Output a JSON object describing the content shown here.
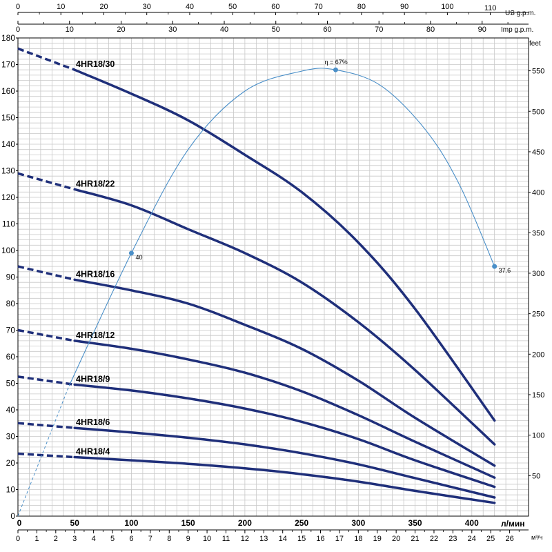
{
  "chart_data": {
    "type": "line",
    "axes": {
      "left": {
        "min": 0,
        "max": 180,
        "tick_labels": [
          "0",
          "10",
          "20",
          "30",
          "40",
          "50",
          "60",
          "70",
          "80",
          "90",
          "100",
          "110",
          "120",
          "130",
          "140",
          "150",
          "160",
          "170",
          "180"
        ]
      },
      "right": {
        "label": "feet",
        "min": 0,
        "max": 590.55,
        "tick_values": [
          50,
          100,
          150,
          200,
          250,
          300,
          350,
          400,
          450,
          500,
          550
        ],
        "tick_labels": [
          "50",
          "100",
          "150",
          "200",
          "250",
          "300",
          "350",
          "400",
          "450",
          "500",
          "550"
        ]
      },
      "bottom_lpm": {
        "label": "л/мин",
        "min": 0,
        "max": 450,
        "tick_values": [
          50,
          100,
          150,
          200,
          250,
          300,
          350,
          400
        ],
        "tick_labels": [
          "50",
          "100",
          "150",
          "200",
          "250",
          "300",
          "350",
          "400"
        ],
        "origin_label": "0"
      },
      "bottom_m3h": {
        "label": "м³/ч",
        "min": 0,
        "max": 27,
        "tick_values": [
          0,
          1,
          2,
          3,
          4,
          5,
          6,
          7,
          8,
          9,
          10,
          11,
          12,
          13,
          14,
          15,
          16,
          17,
          18,
          19,
          20,
          21,
          22,
          23,
          24,
          25,
          26
        ],
        "tick_labels": [
          "0",
          "1",
          "2",
          "3",
          "4",
          "5",
          "6",
          "7",
          "8",
          "9",
          "10",
          "11",
          "12",
          "13",
          "14",
          "15",
          "16",
          "17",
          "18",
          "19",
          "20",
          "21",
          "22",
          "23",
          "24",
          "25",
          "26"
        ]
      },
      "top_us": {
        "label": "US g.p.m.",
        "min": 0,
        "max": 118.9,
        "tick_values": [
          0,
          10,
          20,
          30,
          40,
          50,
          60,
          70,
          80,
          90,
          100,
          110
        ],
        "tick_labels": [
          "0",
          "10",
          "20",
          "30",
          "40",
          "50",
          "60",
          "70",
          "80",
          "90",
          "100",
          "110"
        ]
      },
      "top_imp": {
        "label": "Imp g.p.m.",
        "min": 0,
        "max": 99,
        "tick_values": [
          0,
          10,
          20,
          30,
          40,
          50,
          60,
          70,
          80,
          90
        ],
        "tick_labels": [
          "0",
          "10",
          "20",
          "30",
          "40",
          "50",
          "60",
          "70",
          "80",
          "90"
        ]
      }
    },
    "grid": true,
    "series": [
      {
        "name": "4HR18/30",
        "color": "#1f2f7a",
        "dashed": {
          "x": [
            0,
            50
          ],
          "y": [
            176,
            168
          ]
        },
        "x": [
          50,
          100,
          150,
          200,
          250,
          300,
          350,
          420
        ],
        "y": [
          168,
          159,
          149,
          136,
          122,
          103,
          78,
          36
        ]
      },
      {
        "name": "4HR18/22",
        "color": "#1f2f7a",
        "dashed": {
          "x": [
            0,
            50
          ],
          "y": [
            129,
            123
          ]
        },
        "x": [
          50,
          100,
          150,
          200,
          250,
          300,
          350,
          420
        ],
        "y": [
          123,
          117,
          108,
          99,
          88,
          73,
          55,
          27
        ]
      },
      {
        "name": "4HR18/16",
        "color": "#1f2f7a",
        "dashed": {
          "x": [
            0,
            50
          ],
          "y": [
            94,
            89
          ]
        },
        "x": [
          50,
          100,
          150,
          200,
          250,
          300,
          350,
          420
        ],
        "y": [
          89,
          85,
          80,
          72,
          63,
          51,
          37,
          19
        ]
      },
      {
        "name": "4HR18/12",
        "color": "#1f2f7a",
        "dashed": {
          "x": [
            0,
            50
          ],
          "y": [
            70,
            66
          ]
        },
        "x": [
          50,
          100,
          150,
          200,
          250,
          300,
          350,
          420
        ],
        "y": [
          66,
          63,
          59,
          54,
          47,
          38,
          28,
          14.5
        ]
      },
      {
        "name": "4HR18/9",
        "color": "#1f2f7a",
        "dashed": {
          "x": [
            0,
            50
          ],
          "y": [
            52.5,
            49.5
          ]
        },
        "x": [
          50,
          100,
          150,
          200,
          250,
          300,
          350,
          420
        ],
        "y": [
          49.5,
          47.3,
          44.3,
          40.5,
          35.5,
          29,
          21,
          11
        ]
      },
      {
        "name": "4HR18/6",
        "color": "#1f2f7a",
        "dashed": {
          "x": [
            0,
            50
          ],
          "y": [
            35,
            33.2
          ]
        },
        "x": [
          50,
          100,
          150,
          200,
          250,
          300,
          350,
          420
        ],
        "y": [
          33.2,
          31.5,
          29.5,
          27,
          23.7,
          19.5,
          14.3,
          7
        ]
      },
      {
        "name": "4HR18/4",
        "color": "#1f2f7a",
        "dashed": {
          "x": [
            0,
            50
          ],
          "y": [
            23.5,
            22.2
          ]
        },
        "x": [
          50,
          100,
          150,
          200,
          250,
          300,
          350,
          420
        ],
        "y": [
          22.2,
          21,
          19.7,
          18,
          15.8,
          13,
          9.5,
          5
        ]
      }
    ],
    "efficiency": {
      "label": "η = 67%",
      "color": "#4a8fc8",
      "dashed": {
        "x": [
          0,
          45
        ],
        "y": [
          0,
          49
        ]
      },
      "x": [
        45,
        100,
        150,
        200,
        250,
        280,
        320,
        360,
        390,
        420
      ],
      "y": [
        49,
        99,
        138,
        160,
        167.5,
        168,
        162,
        145,
        124,
        94
      ],
      "markers": [
        {
          "x": 100,
          "y": 99,
          "label": "40"
        },
        {
          "x": 280,
          "y": 168,
          "label": ""
        },
        {
          "x": 420,
          "y": 94,
          "label": "37.6"
        }
      ]
    }
  }
}
